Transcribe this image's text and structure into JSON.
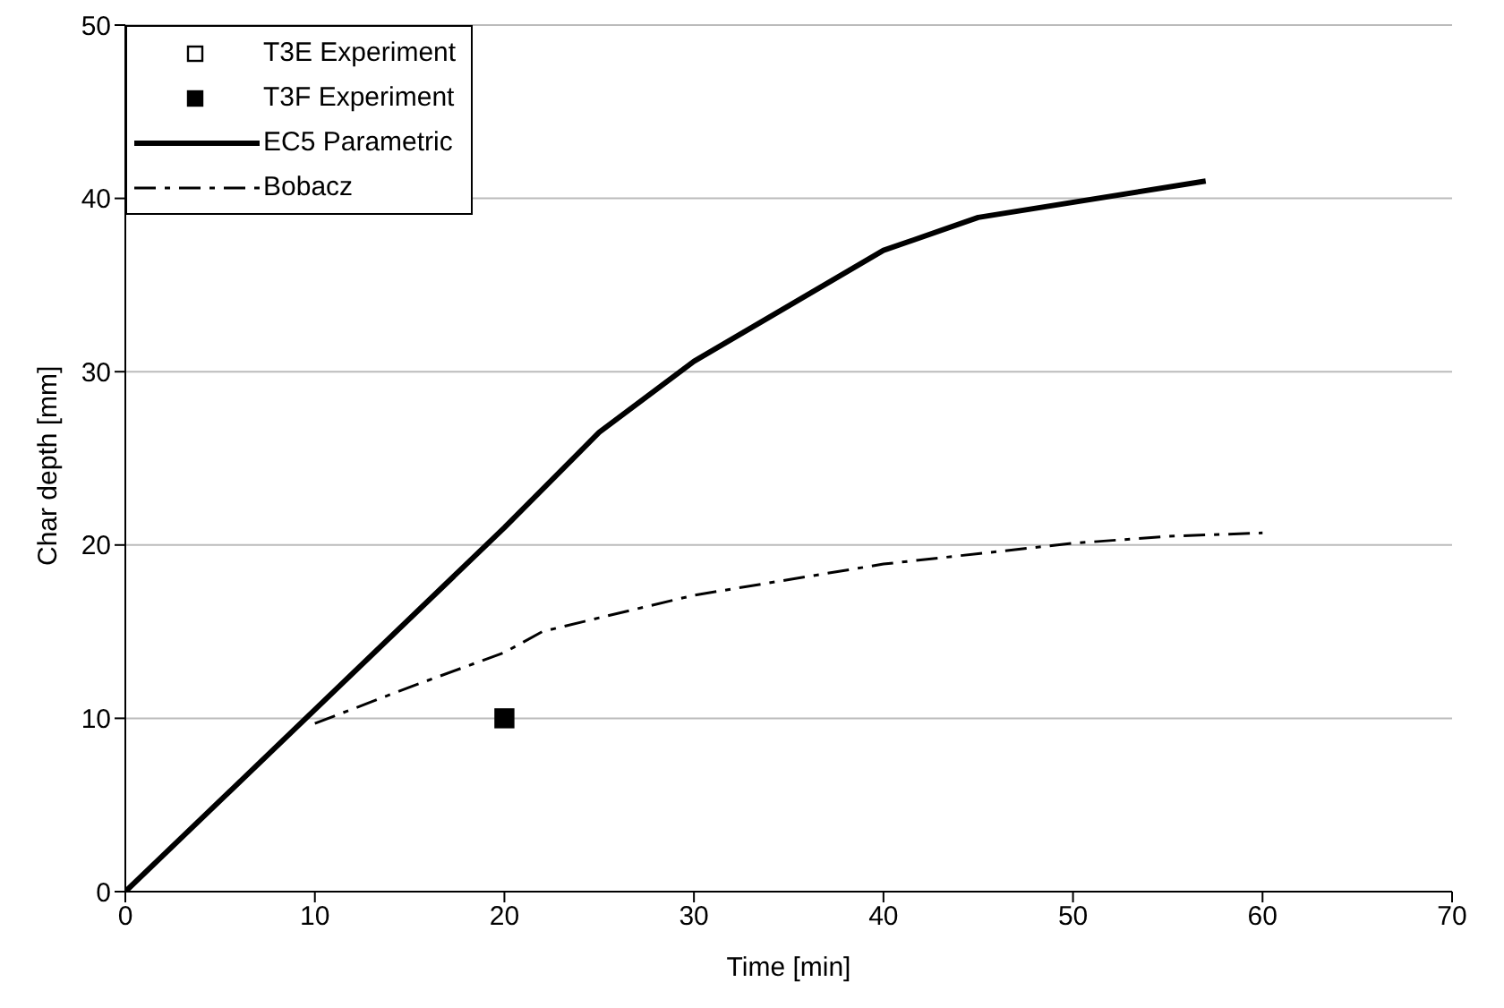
{
  "chart_data": {
    "type": "line",
    "xlabel": "Time [min]",
    "ylabel": "Char depth [mm]",
    "xlim": [
      0,
      70
    ],
    "xticks": [
      0,
      10,
      20,
      30,
      40,
      50,
      60,
      70
    ],
    "ylim": [
      0,
      50
    ],
    "yticks": [
      0,
      10,
      20,
      30,
      40,
      50
    ],
    "grid": "y",
    "legend": "top left",
    "series": [
      {
        "name": "T3E Experiment",
        "type": "scatter",
        "marker": "square",
        "color": "#ffffff"
      },
      {
        "name": "T3F Experiment",
        "type": "scatter",
        "marker": "square",
        "color": "#000000",
        "x": [
          20
        ],
        "values": [
          10
        ]
      },
      {
        "name": "EC5 Parametric",
        "marker": "none",
        "line_style": "solid",
        "color": "#000000",
        "x": [
          0,
          20,
          25,
          30,
          40,
          45,
          57
        ],
        "values": [
          0,
          21,
          26.5,
          30.6,
          37,
          38.9,
          41
        ]
      },
      {
        "name": "Bobacz",
        "marker": "none",
        "line_style": "dashed",
        "color": "#000000",
        "x": [
          10,
          15,
          20,
          22,
          25,
          30,
          35,
          40,
          45,
          50,
          55,
          60
        ],
        "values": [
          9.7,
          11.8,
          13.8,
          15,
          15.8,
          17.1,
          18,
          18.9,
          19.5,
          20.1,
          20.5,
          20.7
        ]
      }
    ]
  }
}
